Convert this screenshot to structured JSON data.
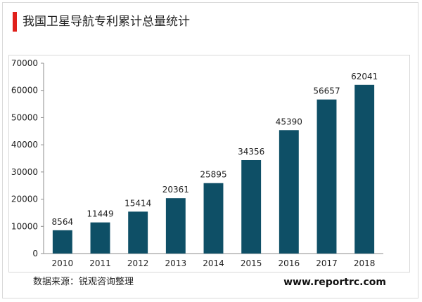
{
  "header": {
    "title": "我国卫星导航专利累计总量统计",
    "accent_color": "#e0201b"
  },
  "footer": {
    "source": "数据来源：锐观咨询整理",
    "website": "www.reportrc.com"
  },
  "chart_data": {
    "type": "bar",
    "title": "我国卫星导航专利累计总量统计",
    "categories": [
      "2010",
      "2011",
      "2012",
      "2013",
      "2014",
      "2015",
      "2016",
      "2017",
      "2018"
    ],
    "values": [
      8564,
      11449,
      15414,
      20361,
      25895,
      34356,
      45390,
      56657,
      62041
    ],
    "ylim": [
      0,
      70000
    ],
    "yticks": [
      0,
      10000,
      20000,
      30000,
      40000,
      50000,
      60000,
      70000
    ],
    "grid": false,
    "legend": "none",
    "bar_color": "#0e4f66",
    "data_labels": true
  }
}
